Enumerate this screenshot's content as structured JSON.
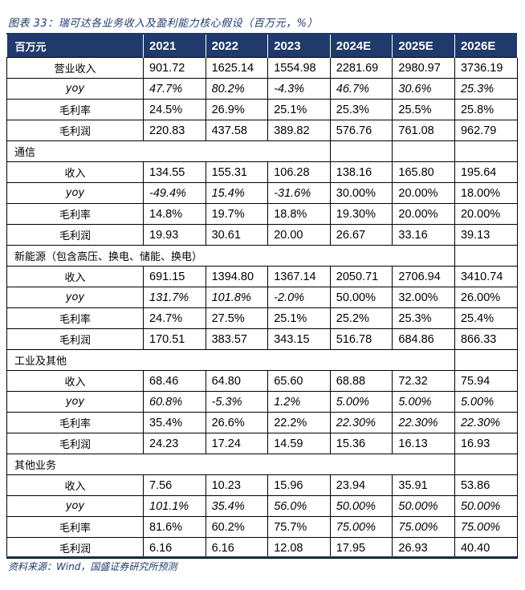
{
  "caption": "图表 33：瑞可达各业务收入及盈利能力核心假设（百万元，%）",
  "header": [
    "百万元",
    "2021",
    "2022",
    "2023",
    "2024E",
    "2025E",
    "2026E"
  ],
  "total": {
    "revenue": {
      "label": "营业收入",
      "values": [
        "901.72",
        "1625.14",
        "1554.98",
        "2281.69",
        "2980.97",
        "3736.19"
      ]
    },
    "yoy": {
      "label": "yoy",
      "values": [
        "47.7%",
        "80.2%",
        "-4.3%",
        "46.7%",
        "30.6%",
        "25.3%"
      ]
    },
    "margin": {
      "label": "毛利率",
      "values": [
        "24.5%",
        "26.9%",
        "25.1%",
        "25.3%",
        "25.5%",
        "25.8%"
      ]
    },
    "profit": {
      "label": "毛利润",
      "values": [
        "220.83",
        "437.58",
        "389.82",
        "576.76",
        "761.08",
        "962.79"
      ]
    }
  },
  "telecom": {
    "section": "通信",
    "revenue": {
      "label": "收入",
      "values": [
        "134.55",
        "155.31",
        "106.28",
        "138.16",
        "165.80",
        "195.64"
      ]
    },
    "yoy": {
      "label": "yoy",
      "values": [
        "-49.4%",
        "15.4%",
        "-31.6%",
        "30.00%",
        "20.00%",
        "18.00%"
      ]
    },
    "margin": {
      "label": "毛利率",
      "values": [
        "14.8%",
        "19.7%",
        "18.8%",
        "19.30%",
        "20.00%",
        "20.00%"
      ]
    },
    "profit": {
      "label": "毛利润",
      "values": [
        "19.93",
        "30.61",
        "20.00",
        "26.67",
        "33.16",
        "39.13"
      ]
    }
  },
  "new_energy": {
    "section": "新能源（包含高压、换电、储能、换电）",
    "revenue": {
      "label": "收入",
      "values": [
        "691.15",
        "1394.80",
        "1367.14",
        "2050.71",
        "2706.94",
        "3410.74"
      ]
    },
    "yoy": {
      "label": "yoy",
      "values": [
        "131.7%",
        "101.8%",
        "-2.0%",
        "50.00%",
        "32.00%",
        "26.00%"
      ]
    },
    "margin": {
      "label": "毛利率",
      "values": [
        "24.7%",
        "27.5%",
        "25.1%",
        "25.2%",
        "25.3%",
        "25.4%"
      ]
    },
    "profit": {
      "label": "毛利润",
      "values": [
        "170.51",
        "383.57",
        "343.15",
        "516.78",
        "684.86",
        "866.33"
      ]
    }
  },
  "industrial": {
    "section": "工业及其他",
    "revenue": {
      "label": "收入",
      "values": [
        "68.46",
        "64.80",
        "65.60",
        "68.88",
        "72.32",
        "75.94"
      ]
    },
    "yoy": {
      "label": "yoy",
      "values": [
        "60.8%",
        "-5.3%",
        "1.2%",
        "5.00%",
        "5.00%",
        "5.00%"
      ]
    },
    "margin": {
      "label": "毛利率",
      "values": [
        "35.4%",
        "26.6%",
        "22.2%",
        "22.30%",
        "22.30%",
        "22.30%"
      ]
    },
    "profit": {
      "label": "毛利润",
      "values": [
        "24.23",
        "17.24",
        "14.59",
        "15.36",
        "16.13",
        "16.93"
      ]
    }
  },
  "other": {
    "section": "其他业务",
    "revenue": {
      "label": "收入",
      "values": [
        "7.56",
        "10.23",
        "15.96",
        "23.94",
        "35.91",
        "53.86"
      ]
    },
    "yoy": {
      "label": "yoy",
      "values": [
        "101.1%",
        "35.4%",
        "56.0%",
        "50.00%",
        "50.00%",
        "50.00%"
      ]
    },
    "margin": {
      "label": "毛利率",
      "values": [
        "81.6%",
        "60.2%",
        "75.7%",
        "75.00%",
        "75.00%",
        "75.00%"
      ]
    },
    "profit": {
      "label": "毛利润",
      "values": [
        "6.16",
        "6.16",
        "12.08",
        "17.95",
        "26.93",
        "40.40"
      ]
    }
  },
  "source": "资料来源：Wind，国盛证券研究所预测"
}
